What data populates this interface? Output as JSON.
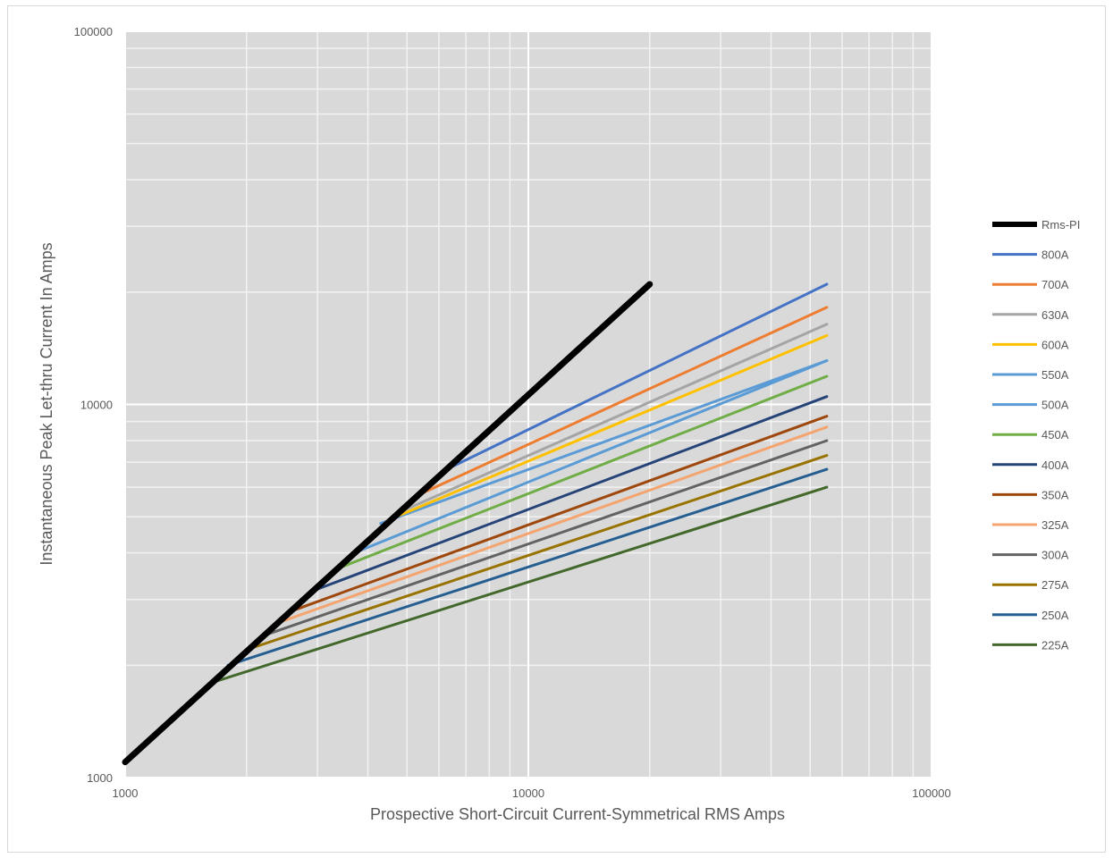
{
  "chart_data": {
    "type": "line",
    "title": "",
    "xlabel": "Prospective Short-Circuit Current-Symmetrical RMS Amps",
    "ylabel": "Instantaneous Peak Let-thru Current In Amps",
    "xscale": "log",
    "yscale": "log",
    "xlim": [
      1000,
      100000
    ],
    "ylim": [
      1000,
      100000
    ],
    "x_ticks": [
      "1000",
      "10000",
      "100000"
    ],
    "y_ticks": [
      "1000",
      "10000",
      "100000"
    ],
    "grid": true,
    "legend_position": "right",
    "plot_background": "#d9d9d9",
    "series": [
      {
        "name": "Rms-PI",
        "color": "#000000",
        "x": [
          1000,
          20000
        ],
        "y": [
          1100,
          21000
        ]
      },
      {
        "name": "800A",
        "color": "#4472c4",
        "x": [
          6100,
          55000
        ],
        "y": [
          6600,
          21000
        ]
      },
      {
        "name": "700A",
        "color": "#ed7d31",
        "x": [
          5300,
          55000
        ],
        "y": [
          5700,
          18200
        ]
      },
      {
        "name": "630A",
        "color": "#a5a5a5",
        "x": [
          4900,
          55000
        ],
        "y": [
          5200,
          16400
        ]
      },
      {
        "name": "600A",
        "color": "#ffc000",
        "x": [
          4500,
          55000
        ],
        "y": [
          4900,
          15300
        ]
      },
      {
        "name": "550A",
        "color": "#5b9bd5",
        "x": [
          4300,
          55000
        ],
        "y": [
          4800,
          13100
        ]
      },
      {
        "name": "500A",
        "color": "#5b9bd5",
        "x": [
          3700,
          55000
        ],
        "y": [
          4000,
          13100
        ]
      },
      {
        "name": "450A",
        "color": "#70ad47",
        "x": [
          3300,
          55000
        ],
        "y": [
          3600,
          11900
        ]
      },
      {
        "name": "400A",
        "color": "#264478",
        "x": [
          3000,
          55000
        ],
        "y": [
          3200,
          10500
        ]
      },
      {
        "name": "350A",
        "color": "#9e480e",
        "x": [
          2600,
          55000
        ],
        "y": [
          2800,
          9300
        ]
      },
      {
        "name": "325A",
        "color": "#f4a46f",
        "x": [
          2400,
          55000
        ],
        "y": [
          2600,
          8700
        ]
      },
      {
        "name": "300A",
        "color": "#636363",
        "x": [
          2200,
          55000
        ],
        "y": [
          2400,
          8000
        ]
      },
      {
        "name": "275A",
        "color": "#997300",
        "x": [
          2000,
          55000
        ],
        "y": [
          2200,
          7300
        ]
      },
      {
        "name": "250A",
        "color": "#255e91",
        "x": [
          1800,
          55000
        ],
        "y": [
          2000,
          6700
        ]
      },
      {
        "name": "225A",
        "color": "#43682b",
        "x": [
          1650,
          55000
        ],
        "y": [
          1800,
          6000
        ]
      }
    ]
  }
}
